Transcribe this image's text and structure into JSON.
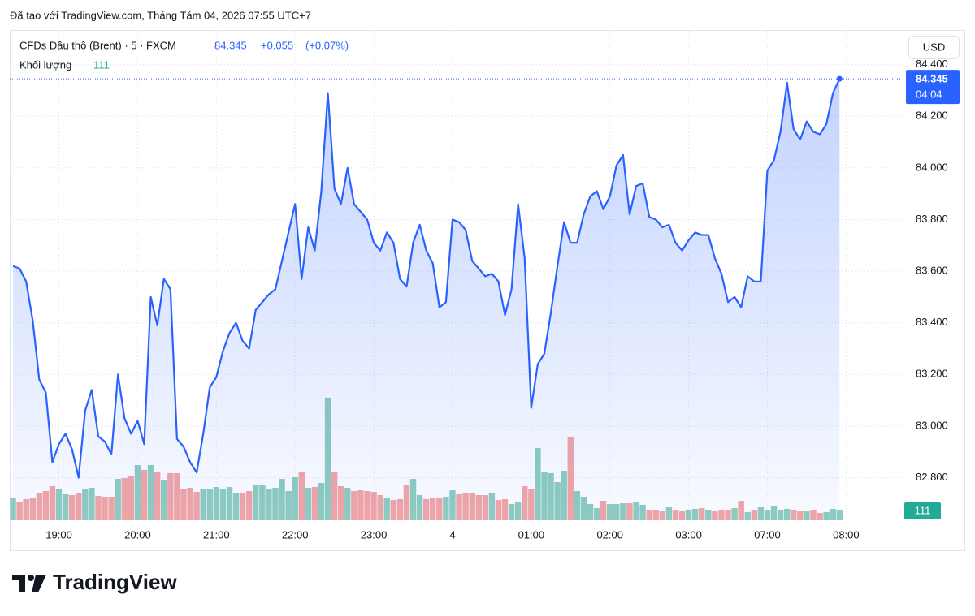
{
  "header": {
    "caption": "Đã tạo với TradingView.com, Tháng Tám 04, 2026 07:55 UTC+7"
  },
  "chart_data": {
    "type": "area",
    "title": "CFDs Dầu thô (Brent) · 5 · FXCM",
    "change": "+0.055",
    "change_percent": "(+0.07%)",
    "currency": "USD",
    "countdown": "04:04",
    "xlim": [
      -0.5,
      135.5
    ],
    "xticks": [
      {
        "value": 7,
        "label": "19:00"
      },
      {
        "value": 19,
        "label": "20:00"
      },
      {
        "value": 31,
        "label": "21:00"
      },
      {
        "value": 43,
        "label": "22:00"
      },
      {
        "value": 55,
        "label": "23:00"
      },
      {
        "value": 67,
        "label": "4"
      },
      {
        "value": 79,
        "label": "01:00"
      },
      {
        "value": 91,
        "label": "02:00"
      },
      {
        "value": 103,
        "label": "03:00"
      },
      {
        "value": 115,
        "label": "07:00"
      },
      {
        "value": 127,
        "label": "08:00"
      }
    ],
    "ylim": [
      82.635,
      84.531
    ],
    "yticks": [
      {
        "value": 82.8,
        "label": "82.800"
      },
      {
        "value": 83.0,
        "label": "83.000"
      },
      {
        "value": 83.2,
        "label": "83.200"
      },
      {
        "value": 83.4,
        "label": "83.400"
      },
      {
        "value": 83.6,
        "label": "83.600"
      },
      {
        "value": 83.8,
        "label": "83.800"
      },
      {
        "value": 84.0,
        "label": "84.000"
      },
      {
        "value": 84.2,
        "label": "84.200"
      },
      {
        "value": 84.4,
        "label": "84.400"
      }
    ],
    "y2lim": [
      0,
      1850
    ],
    "grid": true,
    "series": [
      {
        "color": "#2962ff",
        "values": [
          83.62,
          83.61,
          83.56,
          83.41,
          83.18,
          83.13,
          82.86,
          82.93,
          82.97,
          82.91,
          82.8,
          83.06,
          83.14,
          82.96,
          82.94,
          82.89,
          83.2,
          83.03,
          82.97,
          83.02,
          82.93,
          83.5,
          83.39,
          83.57,
          83.53,
          82.95,
          82.92,
          82.86,
          82.82,
          82.97,
          83.15,
          83.19,
          83.29,
          83.36,
          83.4,
          83.33,
          83.3,
          83.45,
          83.48,
          83.51,
          83.53,
          83.64,
          83.75,
          83.86,
          83.57,
          83.77,
          83.68,
          83.91,
          84.29,
          83.92,
          83.86,
          84.0,
          83.86,
          83.83,
          83.8,
          83.71,
          83.68,
          83.75,
          83.71,
          83.57,
          83.54,
          83.71,
          83.78,
          83.68,
          83.63,
          83.46,
          83.48,
          83.8,
          83.79,
          83.76,
          83.64,
          83.61,
          83.58,
          83.59,
          83.56,
          83.43,
          83.53,
          83.86,
          83.65,
          83.07,
          83.24,
          83.28,
          83.44,
          83.62,
          83.79,
          83.71,
          83.71,
          83.82,
          83.89,
          83.91,
          83.84,
          83.89,
          84.01,
          84.05,
          83.82,
          83.93,
          83.94,
          83.81,
          83.8,
          83.77,
          83.78,
          83.71,
          83.68,
          83.72,
          83.75,
          83.74,
          83.74,
          83.65,
          83.59,
          83.48,
          83.5,
          83.46,
          83.58,
          83.56,
          83.56,
          83.99,
          84.03,
          84.14,
          84.33,
          84.15,
          84.11,
          84.18,
          84.14,
          84.13,
          84.17,
          84.29,
          84.345
        ]
      },
      {
        "name": "Khối lượng",
        "type": "bar",
        "axis": "y2",
        "up_color": "#8fcdc0",
        "down_color": "#f3a6a6",
        "label_color": "#22ab94",
        "values": [
          259,
          204,
          241,
          259,
          305,
          333,
          389,
          361,
          296,
          287,
          305,
          352,
          370,
          278,
          268,
          268,
          472,
          481,
          500,
          629,
          574,
          629,
          555,
          463,
          537,
          537,
          352,
          370,
          324,
          352,
          361,
          379,
          352,
          379,
          315,
          315,
          333,
          407,
          407,
          352,
          370,
          472,
          333,
          490,
          555,
          370,
          379,
          426,
          1397,
          546,
          389,
          370,
          333,
          342,
          333,
          324,
          287,
          259,
          231,
          241,
          407,
          472,
          287,
          241,
          259,
          259,
          268,
          342,
          296,
          305,
          315,
          287,
          287,
          315,
          231,
          241,
          185,
          204,
          389,
          361,
          823,
          546,
          537,
          435,
          564,
          953,
          333,
          268,
          185,
          139,
          222,
          185,
          185,
          194,
          194,
          213,
          176,
          120,
          111,
          102,
          148,
          120,
          102,
          111,
          130,
          139,
          120,
          102,
          111,
          111,
          139,
          222,
          93,
          120,
          148,
          111,
          157,
          111,
          130,
          120,
          102,
          102,
          111,
          83,
          93,
          130,
          111
        ]
      }
    ]
  },
  "brand": "TradingView"
}
